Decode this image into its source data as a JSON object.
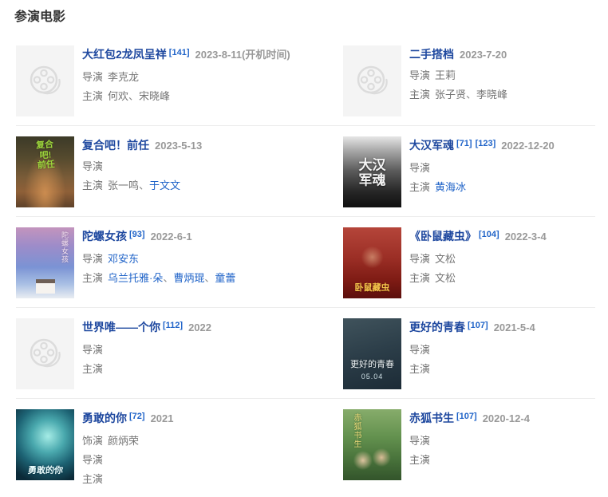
{
  "page": {
    "title": "参演电影"
  },
  "meta": {
    "separator": "、"
  },
  "colors": {
    "heading": "#333333",
    "title_link": "#1e489f",
    "ref_link": "#1f63c8",
    "person_link": "#1f63c8",
    "plain_text": "#757575",
    "date_text": "#999999",
    "divider": "#ececec",
    "placeholder_bg": "#f4f4f4",
    "placeholder_icon": "#dcdcdc"
  },
  "icons": {
    "placeholder": "film-reel-icon"
  },
  "movies": [
    {
      "title": "大红包2龙凤呈祥",
      "refs": [
        "[141]"
      ],
      "date": "2023-8-11(开机时间)",
      "poster": {
        "kind": "placeholder"
      },
      "credits": [
        {
          "label": "导演",
          "people": [
            {
              "name": "李克龙",
              "link": false
            }
          ]
        },
        {
          "label": "主演",
          "people": [
            {
              "name": "何欢",
              "link": false
            },
            {
              "name": "宋晓峰",
              "link": false
            }
          ]
        }
      ]
    },
    {
      "title": "二手搭档",
      "refs": [],
      "date": "2023-7-20",
      "poster": {
        "kind": "placeholder"
      },
      "credits": [
        {
          "label": "导演",
          "people": [
            {
              "name": "王莉",
              "link": false
            }
          ]
        },
        {
          "label": "主演",
          "people": [
            {
              "name": "张子贤",
              "link": false
            },
            {
              "name": "李晓峰",
              "link": false
            }
          ]
        }
      ]
    },
    {
      "title": "复合吧！前任",
      "refs": [],
      "date": "2023-5-13",
      "poster": {
        "kind": "image",
        "style": "fuhe",
        "caption": "复合吧!\n前任"
      },
      "credits": [
        {
          "label": "导演",
          "people": []
        },
        {
          "label": "主演",
          "people": [
            {
              "name": "张一鸣",
              "link": false
            },
            {
              "name": "于文文",
              "link": true
            }
          ]
        }
      ]
    },
    {
      "title": "大汉军魂",
      "refs": [
        "[71]",
        "[123]"
      ],
      "date": "2022-12-20",
      "poster": {
        "kind": "image",
        "style": "dahan",
        "caption": "大汉\n军魂"
      },
      "credits": [
        {
          "label": "导演",
          "people": []
        },
        {
          "label": "主演",
          "people": [
            {
              "name": "黄海冰",
              "link": true
            }
          ]
        }
      ]
    },
    {
      "title": "陀螺女孩",
      "refs": [
        "[93]"
      ],
      "date": "2022-6-1",
      "poster": {
        "kind": "image",
        "style": "tuoluo",
        "caption": "陀螺女孩"
      },
      "credits": [
        {
          "label": "导演",
          "people": [
            {
              "name": "邓安东",
              "link": true
            }
          ]
        },
        {
          "label": "主演",
          "people": [
            {
              "name": "乌兰托雅·朵",
              "link": true
            },
            {
              "name": "曹炳琨",
              "link": true
            },
            {
              "name": "童蕾",
              "link": true
            }
          ]
        }
      ]
    },
    {
      "title": "《卧鼠藏虫》",
      "refs": [
        "[104]"
      ],
      "date": "2022-3-4",
      "poster": {
        "kind": "image",
        "style": "woshu",
        "caption": "卧鼠藏虫"
      },
      "credits": [
        {
          "label": "导演",
          "people": [
            {
              "name": "文松",
              "link": false
            }
          ]
        },
        {
          "label": "主演",
          "people": [
            {
              "name": "文松",
              "link": false
            }
          ]
        }
      ]
    },
    {
      "title": "世界唯——个你",
      "refs": [
        "[112]"
      ],
      "date": "2022",
      "poster": {
        "kind": "placeholder"
      },
      "credits": [
        {
          "label": "导演",
          "people": []
        },
        {
          "label": "主演",
          "people": []
        }
      ]
    },
    {
      "title": "更好的青春",
      "refs": [
        "[107]"
      ],
      "date": "2021-5-4",
      "poster": {
        "kind": "image",
        "style": "qingchun",
        "caption": "更好的青春",
        "sub": "05.04"
      },
      "credits": [
        {
          "label": "导演",
          "people": []
        },
        {
          "label": "主演",
          "people": []
        }
      ]
    },
    {
      "title": "勇敢的你",
      "refs": [
        "[72]"
      ],
      "date": "2021",
      "poster": {
        "kind": "image",
        "style": "yonggan",
        "caption": "勇敢的你"
      },
      "credits": [
        {
          "label": "饰演",
          "people": [
            {
              "name": "颜炳荣",
              "link": false
            }
          ]
        },
        {
          "label": "导演",
          "people": []
        },
        {
          "label": "主演",
          "people": []
        }
      ]
    },
    {
      "title": "赤狐书生",
      "refs": [
        "[107]"
      ],
      "date": "2020-12-4",
      "poster": {
        "kind": "image",
        "style": "chihu",
        "caption": "赤狐书生"
      },
      "credits": [
        {
          "label": "导演",
          "people": []
        },
        {
          "label": "主演",
          "people": []
        }
      ]
    }
  ]
}
